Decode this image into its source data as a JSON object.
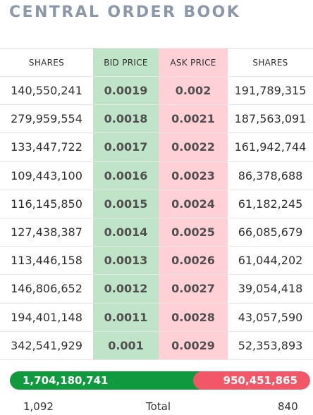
{
  "title": "CENTRAL ORDER BOOK",
  "headers": {
    "shares_left": "SHARES",
    "bid": "BID PRICE",
    "ask": "ASK PRICE",
    "shares_right": "SHARES"
  },
  "rows": [
    {
      "bid_shares": "140,550,241",
      "bid_price": "0.0019",
      "ask_price": "0.002",
      "ask_shares": "191,789,315"
    },
    {
      "bid_shares": "279,959,554",
      "bid_price": "0.0018",
      "ask_price": "0.0021",
      "ask_shares": "187,563,091"
    },
    {
      "bid_shares": "133,447,722",
      "bid_price": "0.0017",
      "ask_price": "0.0022",
      "ask_shares": "161,942,744"
    },
    {
      "bid_shares": "109,443,100",
      "bid_price": "0.0016",
      "ask_price": "0.0023",
      "ask_shares": "86,378,688"
    },
    {
      "bid_shares": "116,145,850",
      "bid_price": "0.0015",
      "ask_price": "0.0024",
      "ask_shares": "61,182,245"
    },
    {
      "bid_shares": "127,438,387",
      "bid_price": "0.0014",
      "ask_price": "0.0025",
      "ask_shares": "66,085,679"
    },
    {
      "bid_shares": "113,446,158",
      "bid_price": "0.0013",
      "ask_price": "0.0026",
      "ask_shares": "61,044,202"
    },
    {
      "bid_shares": "146,806,652",
      "bid_price": "0.0012",
      "ask_price": "0.0027",
      "ask_shares": "39,054,418"
    },
    {
      "bid_shares": "194,401,148",
      "bid_price": "0.0011",
      "ask_price": "0.0028",
      "ask_shares": "43,057,590"
    },
    {
      "bid_shares": "342,541,929",
      "bid_price": "0.001",
      "ask_price": "0.0029",
      "ask_shares": "52,353,893"
    }
  ],
  "totals": {
    "bid_total": "1,704,180,741",
    "ask_total": "950,451,865",
    "bid_fraction": 0.642,
    "bid_orders": "1,092",
    "label": "Total",
    "ask_orders": "840"
  },
  "colors": {
    "bid_bar": "#0f9a3d",
    "ask_bar": "#f25768",
    "bid_cell": "#bfe4c8",
    "ask_cell": "#ffd0d6"
  }
}
